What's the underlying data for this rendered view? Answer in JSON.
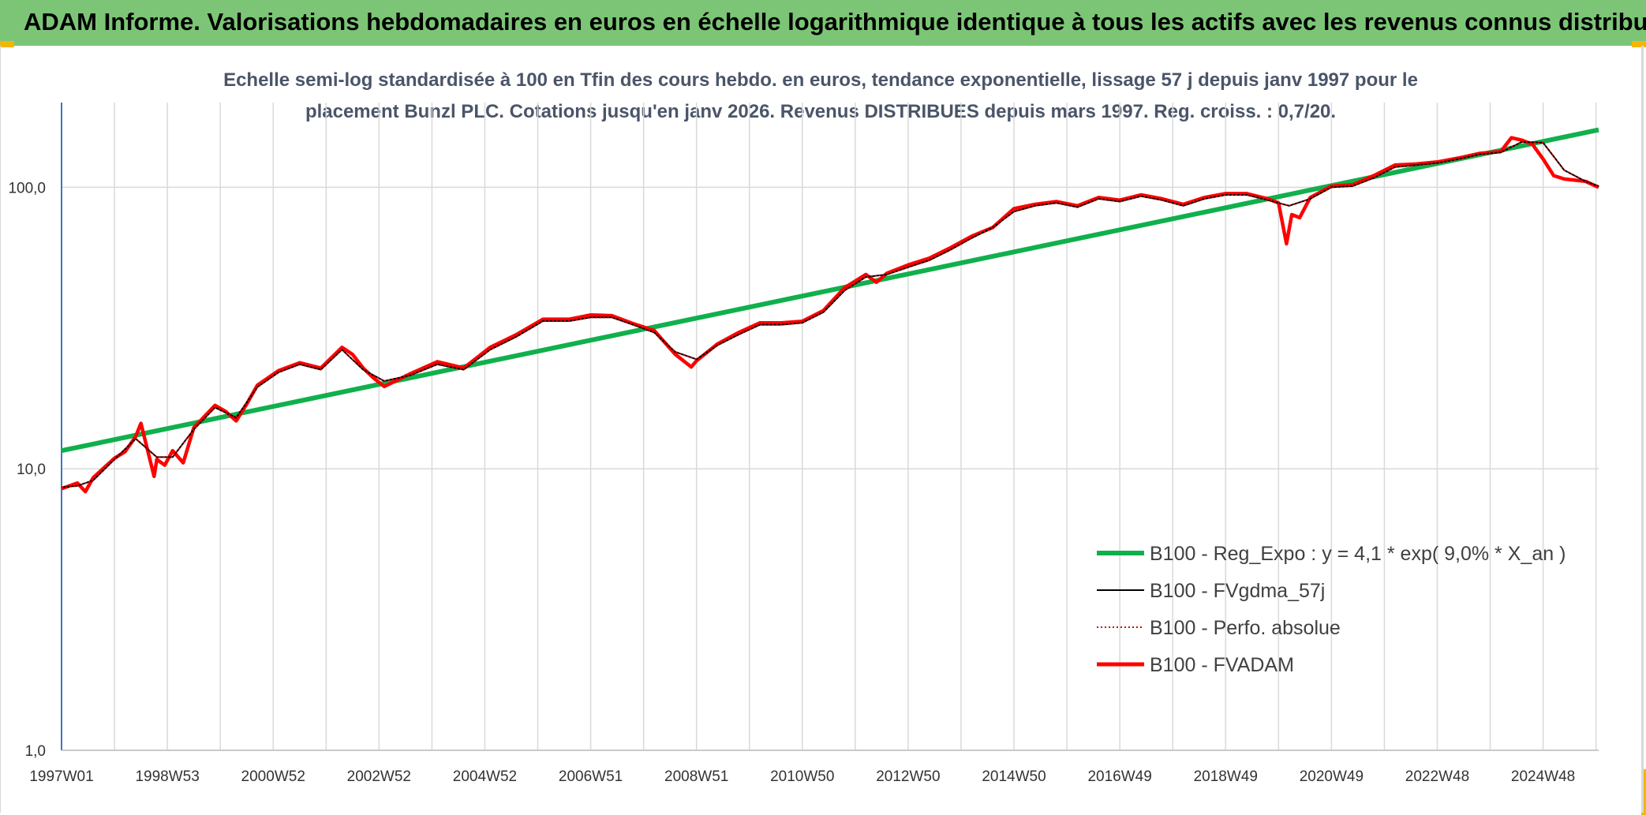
{
  "banner": {
    "title": "ADAM Informe. Valorisations hebdomadaires en euros en échelle logarithmique identique à tous les actifs avec les revenus connus distribués"
  },
  "colors": {
    "banner": "#7cc576",
    "regression": "#10b04c",
    "smoothed": "#000000",
    "fvadam": "#ff0000",
    "perfo": "#cc0000",
    "grid": "#d9d9d9",
    "y_axis": "#4472c4"
  },
  "chart_data": {
    "type": "line",
    "title_line1": "Echelle semi-log standardisée à 100 en Tfin des cours hebdo. en euros, tendance exponentielle, lissage 57 j depuis janv 1997 pour le",
    "title_line2": "placement Bunzl PLC. Cotations jusqu'en janv 2026. Revenus DISTRIBUES depuis mars 1997. Reg. croiss. : 0,7/20.",
    "y_scale": "log",
    "ylim": [
      1,
      200
    ],
    "y_ticks": [
      1,
      10,
      100
    ],
    "y_tick_labels": [
      "1,0",
      "10,0",
      "100,0"
    ],
    "xlim": [
      1997.0,
      2026.05
    ],
    "x_ticks": [
      1997.0,
      1999.0,
      2001.0,
      2003.0,
      2005.0,
      2007.0,
      2009.0,
      2011.0,
      2013.0,
      2015.0,
      2017.0,
      2019.0,
      2021.0,
      2023.0,
      2025.0
    ],
    "x_tick_labels": [
      "1997W01",
      "1998W53",
      "2000W52",
      "2002W52",
      "2004W52",
      "2006W51",
      "2008W51",
      "2010W50",
      "2012W50",
      "2014W50",
      "2016W49",
      "2018W49",
      "2020W49",
      "2022W48",
      "2024W48"
    ],
    "grid": "vertical and horizontal major gridlines",
    "legend_position": "lower-right",
    "series": [
      {
        "name": "B100 - Reg_Expo : y = 4,1 * exp( 9,0% *  X_an )",
        "style": "thick-green",
        "x": [
          1997.0,
          2026.05
        ],
        "y": [
          11.6,
          160
        ]
      },
      {
        "name": "B100 - FVgdma_57j",
        "style": "thin-black",
        "x": [
          1997.0,
          1997.3,
          1997.6,
          1998.0,
          1998.4,
          1998.8,
          1999.1,
          1999.5,
          1999.9,
          2000.3,
          2000.7,
          2001.1,
          2001.5,
          2001.9,
          2002.3,
          2002.7,
          2003.1,
          2003.6,
          2004.1,
          2004.6,
          2005.1,
          2005.6,
          2006.1,
          2006.6,
          2007.0,
          2007.4,
          2007.8,
          2008.2,
          2008.6,
          2009.0,
          2009.4,
          2009.8,
          2010.2,
          2010.6,
          2011.0,
          2011.4,
          2011.8,
          2012.2,
          2012.6,
          2013.0,
          2013.4,
          2013.8,
          2014.2,
          2014.6,
          2015.0,
          2015.4,
          2015.8,
          2016.2,
          2016.6,
          2017.0,
          2017.4,
          2017.8,
          2018.2,
          2018.6,
          2019.0,
          2019.4,
          2019.8,
          2020.2,
          2020.6,
          2021.0,
          2021.4,
          2021.8,
          2022.2,
          2022.6,
          2023.0,
          2023.4,
          2023.8,
          2024.2,
          2024.6,
          2025.0,
          2025.4,
          2025.8,
          2026.05
        ],
        "y": [
          8.6,
          8.7,
          9.1,
          10.8,
          12.8,
          11.0,
          11.0,
          13.8,
          16.5,
          15.2,
          19.5,
          22.0,
          23.5,
          22.5,
          26.5,
          22.5,
          20.5,
          21.5,
          23.5,
          22.5,
          26.5,
          29.5,
          33.5,
          33.5,
          34.5,
          34.5,
          32.5,
          30.5,
          26.0,
          24.5,
          27.5,
          30.0,
          32.5,
          32.5,
          33.0,
          36.0,
          43.0,
          48.0,
          49.0,
          52.0,
          55.0,
          60.0,
          66.0,
          72.0,
          82.0,
          86.0,
          88.0,
          85.0,
          91.0,
          89.0,
          93.0,
          90.0,
          86.0,
          91.0,
          94.0,
          94.0,
          90.0,
          86.0,
          91.0,
          100.0,
          101.0,
          108.0,
          118.0,
          120.0,
          122.0,
          126.0,
          131.0,
          133.0,
          145.0,
          144.0,
          115.0,
          105.0,
          101.0
        ]
      },
      {
        "name": "B100 - Perfo. absolue",
        "style": "dotted-red",
        "x": [
          1997.0,
          1997.3,
          1997.6,
          1998.0,
          1998.4,
          1998.8,
          1999.1,
          1999.5,
          1999.9,
          2000.3,
          2000.7,
          2001.1,
          2001.5,
          2001.9,
          2002.3,
          2002.7,
          2003.1,
          2003.6,
          2004.1,
          2004.6,
          2005.1,
          2005.6,
          2006.1,
          2006.6,
          2007.0,
          2007.4,
          2007.8,
          2008.2,
          2008.6,
          2009.0,
          2009.4,
          2009.8,
          2010.2,
          2010.6,
          2011.0,
          2011.4,
          2011.8,
          2012.2,
          2012.6,
          2013.0,
          2013.4,
          2013.8,
          2014.2,
          2014.6,
          2015.0,
          2015.4,
          2015.8,
          2016.2,
          2016.6,
          2017.0,
          2017.4,
          2017.8,
          2018.2,
          2018.6,
          2019.0,
          2019.4,
          2019.8,
          2020.2,
          2020.6,
          2021.0,
          2021.4,
          2021.8,
          2022.2,
          2022.6,
          2023.0,
          2023.4,
          2023.8,
          2024.2,
          2024.6,
          2025.0,
          2025.4,
          2025.8,
          2026.05
        ],
        "y": [
          8.6,
          8.7,
          9.1,
          10.8,
          12.8,
          11.0,
          11.0,
          13.8,
          16.5,
          15.2,
          19.5,
          22.0,
          23.5,
          22.5,
          26.5,
          22.5,
          20.5,
          21.5,
          23.5,
          22.5,
          26.5,
          29.5,
          33.5,
          33.5,
          34.5,
          34.5,
          32.5,
          30.5,
          26.0,
          24.5,
          27.5,
          30.0,
          32.5,
          32.5,
          33.0,
          36.0,
          43.0,
          48.0,
          49.0,
          52.0,
          55.0,
          60.0,
          66.0,
          72.0,
          82.0,
          86.0,
          88.0,
          85.0,
          91.0,
          89.0,
          93.0,
          90.0,
          86.0,
          91.0,
          94.0,
          94.0,
          90.0,
          86.0,
          91.0,
          100.0,
          101.0,
          108.0,
          118.0,
          120.0,
          122.0,
          126.0,
          131.0,
          133.0,
          145.0,
          144.0,
          115.0,
          105.0,
          101.0
        ]
      },
      {
        "name": "B100 - FVADAM",
        "style": "thick-red",
        "x": [
          1997.0,
          1997.3,
          1997.45,
          1997.6,
          1998.0,
          1998.2,
          1998.4,
          1998.5,
          1998.75,
          1998.8,
          1998.95,
          1999.1,
          1999.3,
          1999.5,
          1999.9,
          2000.1,
          2000.3,
          2000.5,
          2000.7,
          2001.1,
          2001.5,
          2001.9,
          2002.3,
          2002.5,
          2002.7,
          2002.9,
          2003.1,
          2003.6,
          2004.1,
          2004.6,
          2005.1,
          2005.6,
          2006.1,
          2006.6,
          2007.0,
          2007.4,
          2007.8,
          2008.2,
          2008.6,
          2008.9,
          2009.0,
          2009.4,
          2009.8,
          2010.2,
          2010.6,
          2011.0,
          2011.4,
          2011.8,
          2012.2,
          2012.4,
          2012.6,
          2013.0,
          2013.4,
          2013.8,
          2014.2,
          2014.6,
          2015.0,
          2015.4,
          2015.8,
          2016.2,
          2016.6,
          2017.0,
          2017.4,
          2017.8,
          2018.2,
          2018.6,
          2019.0,
          2019.4,
          2019.8,
          2020.0,
          2020.15,
          2020.25,
          2020.4,
          2020.6,
          2021.0,
          2021.4,
          2021.8,
          2022.2,
          2022.6,
          2023.0,
          2023.4,
          2023.8,
          2024.2,
          2024.4,
          2024.6,
          2024.8,
          2025.0,
          2025.2,
          2025.4,
          2025.8,
          2026.05
        ],
        "y": [
          8.5,
          8.9,
          8.3,
          9.3,
          10.9,
          11.5,
          13.0,
          14.5,
          9.4,
          10.8,
          10.3,
          11.6,
          10.5,
          14.0,
          16.8,
          16.0,
          14.8,
          17.0,
          19.8,
          22.3,
          23.8,
          22.8,
          27.0,
          25.5,
          22.8,
          21.0,
          19.6,
          21.8,
          24.0,
          22.8,
          27.0,
          30.0,
          34.0,
          34.0,
          35.2,
          35.0,
          32.8,
          31.0,
          25.5,
          23.0,
          24.2,
          27.8,
          30.5,
          33.0,
          33.0,
          33.4,
          36.5,
          44.0,
          49.0,
          46.0,
          49.5,
          53.0,
          56.0,
          61.0,
          67.0,
          72.0,
          84.0,
          87.0,
          89.0,
          86.0,
          92.0,
          90.0,
          94.0,
          91.0,
          87.0,
          92.0,
          95.0,
          95.0,
          91.0,
          88.0,
          63.0,
          80.0,
          78.0,
          92.0,
          101.0,
          102.0,
          110.0,
          120.0,
          121.0,
          123.0,
          127.0,
          132.0,
          134.0,
          150.0,
          147.0,
          142.0,
          126.0,
          110.0,
          107.0,
          105.0,
          100.0
        ]
      }
    ]
  }
}
